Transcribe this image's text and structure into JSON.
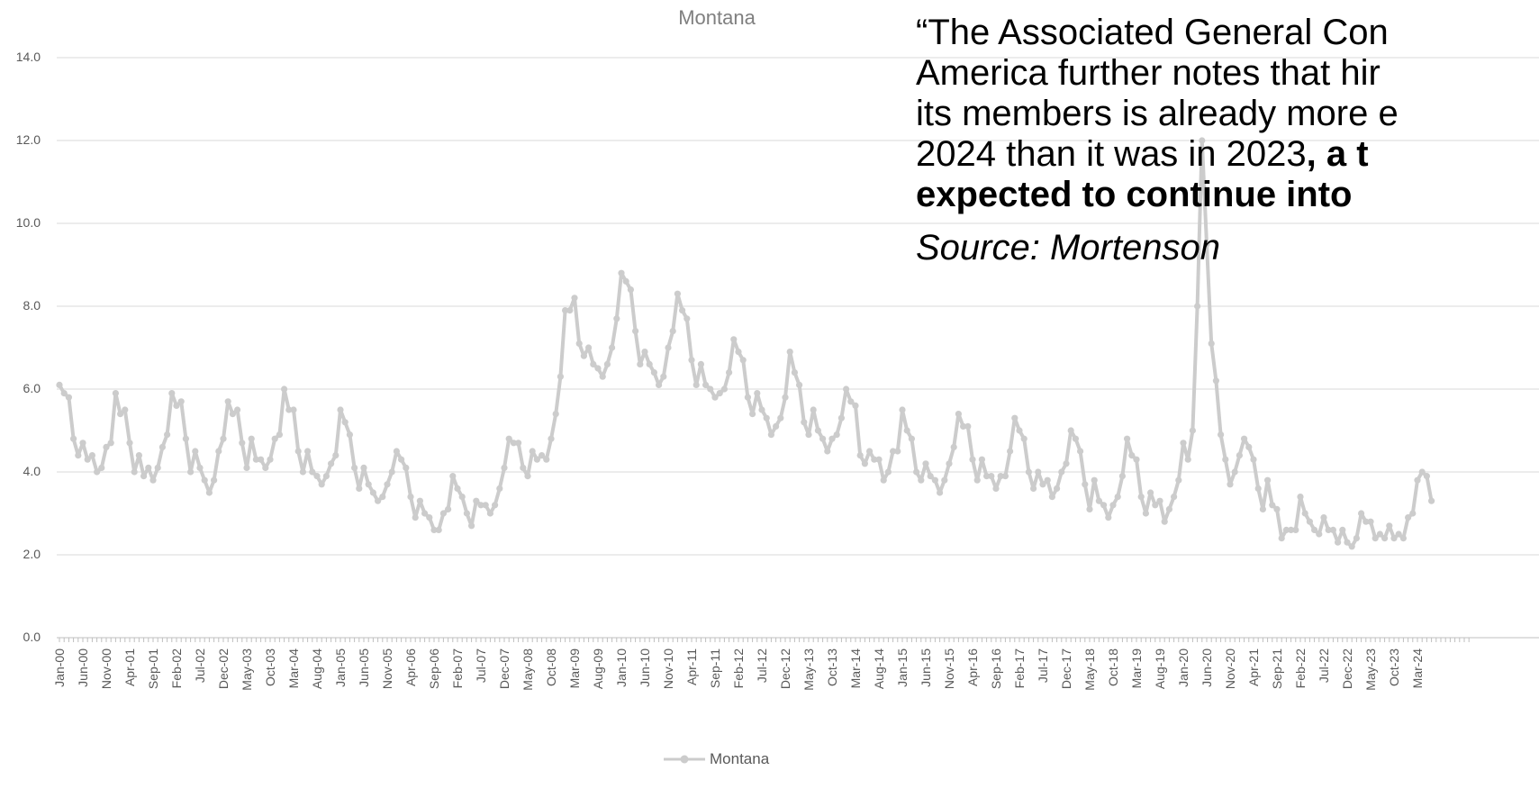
{
  "chart_data": {
    "type": "line",
    "title": "Montana",
    "xlabel": "",
    "ylabel": "",
    "ylim": [
      0,
      14
    ],
    "yticks": [
      "0.0",
      "2.0",
      "4.0",
      "6.0",
      "8.0",
      "10.0",
      "12.0",
      "14.0"
    ],
    "grid": true,
    "legend_position": "bottom",
    "x_tick_labels": [
      "Jan-00",
      "Jun-00",
      "Nov-00",
      "Apr-01",
      "Sep-01",
      "Feb-02",
      "Jul-02",
      "Dec-02",
      "May-03",
      "Oct-03",
      "Mar-04",
      "Aug-04",
      "Jan-05",
      "Jun-05",
      "Nov-05",
      "Apr-06",
      "Sep-06",
      "Feb-07",
      "Jul-07",
      "Dec-07",
      "May-08",
      "Oct-08",
      "Mar-09",
      "Aug-09",
      "Jan-10",
      "Jun-10",
      "Nov-10",
      "Apr-11",
      "Sep-11",
      "Feb-12",
      "Jul-12",
      "Dec-12",
      "May-13",
      "Oct-13",
      "Mar-14",
      "Aug-14",
      "Jan-15",
      "Jun-15",
      "Nov-15",
      "Apr-16",
      "Sep-16",
      "Feb-17",
      "Jul-17",
      "Dec-17",
      "May-18",
      "Oct-18",
      "Mar-19",
      "Aug-19",
      "Jan-20",
      "Jun-20",
      "Nov-20",
      "Apr-21",
      "Sep-21",
      "Feb-22",
      "Jul-22",
      "Dec-22",
      "May-23",
      "Oct-23",
      "Mar-24"
    ],
    "series": [
      {
        "name": "Montana",
        "color": "#cccccc",
        "x_start": "Jan-00",
        "frequency": "monthly",
        "values": [
          6.1,
          5.9,
          5.8,
          4.8,
          4.4,
          4.7,
          4.3,
          4.4,
          4.0,
          4.1,
          4.6,
          4.7,
          5.9,
          5.4,
          5.5,
          4.7,
          4.0,
          4.4,
          3.9,
          4.1,
          3.8,
          4.1,
          4.6,
          4.9,
          5.9,
          5.6,
          5.7,
          4.8,
          4.0,
          4.5,
          4.1,
          3.8,
          3.5,
          3.8,
          4.5,
          4.8,
          5.7,
          5.4,
          5.5,
          4.7,
          4.1,
          4.8,
          4.3,
          4.3,
          4.1,
          4.3,
          4.8,
          4.9,
          6.0,
          5.5,
          5.5,
          4.5,
          4.0,
          4.5,
          4.0,
          3.9,
          3.7,
          3.9,
          4.2,
          4.4,
          5.5,
          5.2,
          4.9,
          4.1,
          3.6,
          4.1,
          3.7,
          3.5,
          3.3,
          3.4,
          3.7,
          4.0,
          4.5,
          4.3,
          4.1,
          3.4,
          2.9,
          3.3,
          3.0,
          2.9,
          2.6,
          2.6,
          3.0,
          3.1,
          3.9,
          3.6,
          3.4,
          3.0,
          2.7,
          3.3,
          3.2,
          3.2,
          3.0,
          3.2,
          3.6,
          4.1,
          4.8,
          4.7,
          4.7,
          4.1,
          3.9,
          4.5,
          4.3,
          4.4,
          4.3,
          4.8,
          5.4,
          6.3,
          7.9,
          7.9,
          8.2,
          7.1,
          6.8,
          7.0,
          6.6,
          6.5,
          6.3,
          6.6,
          7.0,
          7.7,
          8.8,
          8.6,
          8.4,
          7.4,
          6.6,
          6.9,
          6.6,
          6.4,
          6.1,
          6.3,
          7.0,
          7.4,
          8.3,
          7.9,
          7.7,
          6.7,
          6.1,
          6.6,
          6.1,
          6.0,
          5.8,
          5.9,
          6.0,
          6.4,
          7.2,
          6.9,
          6.7,
          5.8,
          5.4,
          5.9,
          5.5,
          5.3,
          4.9,
          5.1,
          5.3,
          5.8,
          6.9,
          6.4,
          6.1,
          5.2,
          4.9,
          5.5,
          5.0,
          4.8,
          4.5,
          4.8,
          4.9,
          5.3,
          6.0,
          5.7,
          5.6,
          4.4,
          4.2,
          4.5,
          4.3,
          4.3,
          3.8,
          4.0,
          4.5,
          4.5,
          5.5,
          5.0,
          4.8,
          4.0,
          3.8,
          4.2,
          3.9,
          3.8,
          3.5,
          3.8,
          4.2,
          4.6,
          5.4,
          5.1,
          5.1,
          4.3,
          3.8,
          4.3,
          3.9,
          3.9,
          3.6,
          3.9,
          3.9,
          4.5,
          5.3,
          5.0,
          4.8,
          4.0,
          3.6,
          4.0,
          3.7,
          3.8,
          3.4,
          3.6,
          4.0,
          4.2,
          5.0,
          4.8,
          4.5,
          3.7,
          3.1,
          3.8,
          3.3,
          3.2,
          2.9,
          3.2,
          3.4,
          3.9,
          4.8,
          4.4,
          4.3,
          3.4,
          3.0,
          3.5,
          3.2,
          3.3,
          2.8,
          3.1,
          3.4,
          3.8,
          4.7,
          4.3,
          5.0,
          8.0,
          12.0,
          9.5,
          7.1,
          6.2,
          4.9,
          4.3,
          3.7,
          4.0,
          4.4,
          4.8,
          4.6,
          4.3,
          3.6,
          3.1,
          3.8,
          3.2,
          3.1,
          2.4,
          2.6,
          2.6,
          2.6,
          3.4,
          3.0,
          2.8,
          2.6,
          2.5,
          2.9,
          2.6,
          2.6,
          2.3,
          2.6,
          2.3,
          2.2,
          2.4,
          3.0,
          2.8,
          2.8,
          2.4,
          2.5,
          2.4,
          2.7,
          2.4,
          2.5,
          2.4,
          2.9,
          3.0,
          3.8,
          4.0,
          3.9,
          3.3
        ]
      }
    ]
  },
  "quote": {
    "line1": "“The Associated General Con",
    "line2": "America further notes that hir",
    "line3": "its members is already more e",
    "line4_normal": "2024 than it was in 2023",
    "line4_bold": ", a t",
    "line5_bold": "expected to continue into",
    "source": "Source: Mortenson"
  }
}
